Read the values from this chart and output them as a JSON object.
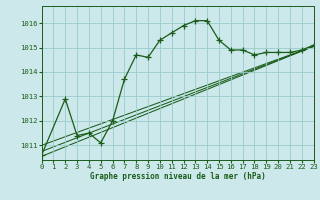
{
  "background_color": "#cce8ea",
  "grid_color": "#99cccc",
  "line_color": "#1a5c1a",
  "title": "Graphe pression niveau de la mer (hPa)",
  "xlim": [
    0,
    23
  ],
  "ylim": [
    1010.4,
    1016.7
  ],
  "yticks": [
    1011,
    1012,
    1013,
    1014,
    1015,
    1016
  ],
  "xticks": [
    0,
    1,
    2,
    3,
    4,
    5,
    6,
    7,
    8,
    9,
    10,
    11,
    12,
    13,
    14,
    15,
    16,
    17,
    18,
    19,
    20,
    21,
    22,
    23
  ],
  "main_x": [
    0,
    2,
    3,
    4,
    5,
    6,
    7,
    8,
    9,
    10,
    11,
    12,
    13,
    14,
    15,
    16,
    17,
    18,
    19,
    20,
    21,
    22,
    23
  ],
  "main_y": [
    1010.6,
    1012.9,
    1011.4,
    1011.5,
    1011.1,
    1012.0,
    1013.7,
    1014.7,
    1014.6,
    1015.3,
    1015.6,
    1015.9,
    1016.1,
    1016.1,
    1015.3,
    1014.9,
    1014.9,
    1014.7,
    1014.8,
    1014.8,
    1014.8,
    1014.9,
    1015.1
  ],
  "trend_lines": [
    {
      "x": [
        0,
        23
      ],
      "y": [
        1010.55,
        1015.05
      ]
    },
    {
      "x": [
        0,
        23
      ],
      "y": [
        1010.75,
        1015.05
      ]
    },
    {
      "x": [
        0,
        23
      ],
      "y": [
        1011.0,
        1015.05
      ]
    }
  ]
}
